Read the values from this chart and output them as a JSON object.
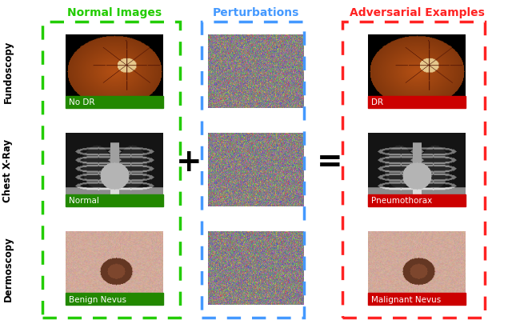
{
  "col1_title": "Normal Images",
  "col2_title": "Perturbations",
  "col3_title": "Adversarial Examples",
  "row_labels": [
    "Fundoscopy",
    "Chest X-Ray",
    "Dermoscopy"
  ],
  "img_labels_col1": [
    "No DR",
    "Normal",
    "Benign Nevus"
  ],
  "img_labels_col3": [
    "DR",
    "Pneumothorax",
    "Malignant Nevus"
  ],
  "col1_border_color": "#22cc00",
  "col2_border_color": "#4499ff",
  "col3_border_color": "#ff2222",
  "col1_title_color": "#22cc00",
  "col2_title_color": "#4499ff",
  "col3_title_color": "#ff2222",
  "label_bg_col1": "#228800",
  "label_bg_col3": "#cc0000",
  "operator_color": "#000000",
  "bg_color": "#ffffff",
  "row_label_color": "#000000"
}
